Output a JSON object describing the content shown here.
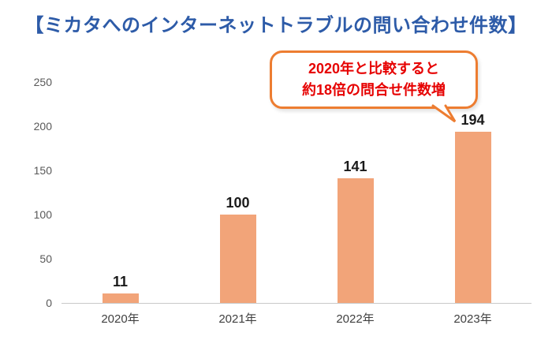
{
  "title": "【ミカタへのインターネットトラブルの問い合わせ件数】",
  "callout": {
    "line1": "2020年と比較すると",
    "line2": "約18倍の問合せ件数増"
  },
  "chart_data": {
    "type": "bar",
    "title": "【ミカタへのインターネットトラブルの問い合わせ件数】",
    "categories": [
      "2020年",
      "2021年",
      "2022年",
      "2023年"
    ],
    "values": [
      11,
      100,
      141,
      194
    ],
    "xlabel": "",
    "ylabel": "",
    "ylim": [
      0,
      250
    ],
    "yticks": [
      0,
      50,
      100,
      150,
      200,
      250
    ],
    "grid": false,
    "legend": false,
    "bar_color": "#f2a479",
    "annotation": "2020年と比較すると約18倍の問合せ件数増"
  },
  "colors": {
    "title": "#2d5ba8",
    "bar": "#f2a479",
    "callout_border": "#ed7d31",
    "callout_text": "#e60000",
    "axis_text": "#595959",
    "value_label": "#1a1a1a"
  }
}
